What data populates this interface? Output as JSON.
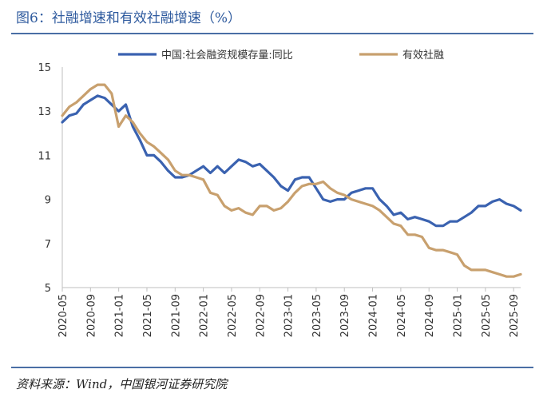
{
  "title": "图6：社融增速和有效社融增速（%）",
  "source": "资料来源：Wind，中国银河证券研究院",
  "chart_data": {
    "type": "line",
    "ylim": [
      5,
      15
    ],
    "yticks": [
      "5",
      "7",
      "9",
      "11",
      "13",
      "15"
    ],
    "xticks": [
      "2020-05",
      "2020-09",
      "2021-01",
      "2021-05",
      "2021-09",
      "2022-01",
      "2022-05",
      "2022-09",
      "2023-01",
      "2023-05",
      "2023-09",
      "2024-01",
      "2024-05",
      "2024-09",
      "2025-01",
      "2025-05",
      "2025-09"
    ],
    "legend_position": "top",
    "series": [
      {
        "name": "中国:社会融资规模存量:同比",
        "color": "#3A62B0",
        "values": [
          12.5,
          12.8,
          12.9,
          13.3,
          13.5,
          13.7,
          13.6,
          13.3,
          13.0,
          13.3,
          12.3,
          11.7,
          11.0,
          11.0,
          10.7,
          10.3,
          10.0,
          10.0,
          10.1,
          10.3,
          10.5,
          10.2,
          10.5,
          10.2,
          10.5,
          10.8,
          10.7,
          10.5,
          10.6,
          10.3,
          10.0,
          9.6,
          9.4,
          9.9,
          10.0,
          10.0,
          9.5,
          9.0,
          8.9,
          9.0,
          9.0,
          9.3,
          9.4,
          9.5,
          9.5,
          9.0,
          8.7,
          8.3,
          8.4,
          8.1,
          8.2,
          8.1,
          8.0,
          7.8,
          7.8,
          8.0,
          8.0,
          8.2,
          8.4,
          8.7,
          8.7,
          8.9,
          9.0,
          8.8,
          8.7,
          8.5
        ]
      },
      {
        "name": "有效社融",
        "color": "#C8A06E",
        "values": [
          12.8,
          13.2,
          13.4,
          13.7,
          14.0,
          14.2,
          14.2,
          13.8,
          12.3,
          12.8,
          12.5,
          12.0,
          11.6,
          11.4,
          11.1,
          10.8,
          10.3,
          10.1,
          10.1,
          10.0,
          9.9,
          9.3,
          9.2,
          8.7,
          8.5,
          8.6,
          8.4,
          8.3,
          8.7,
          8.7,
          8.5,
          8.6,
          8.9,
          9.3,
          9.6,
          9.7,
          9.7,
          9.8,
          9.5,
          9.3,
          9.2,
          9.0,
          8.9,
          8.8,
          8.7,
          8.5,
          8.2,
          7.9,
          7.8,
          7.4,
          7.4,
          7.3,
          6.8,
          6.7,
          6.7,
          6.6,
          6.5,
          6.0,
          5.8,
          5.8,
          5.8,
          5.7,
          5.6,
          5.5,
          5.5,
          5.6
        ]
      }
    ]
  }
}
